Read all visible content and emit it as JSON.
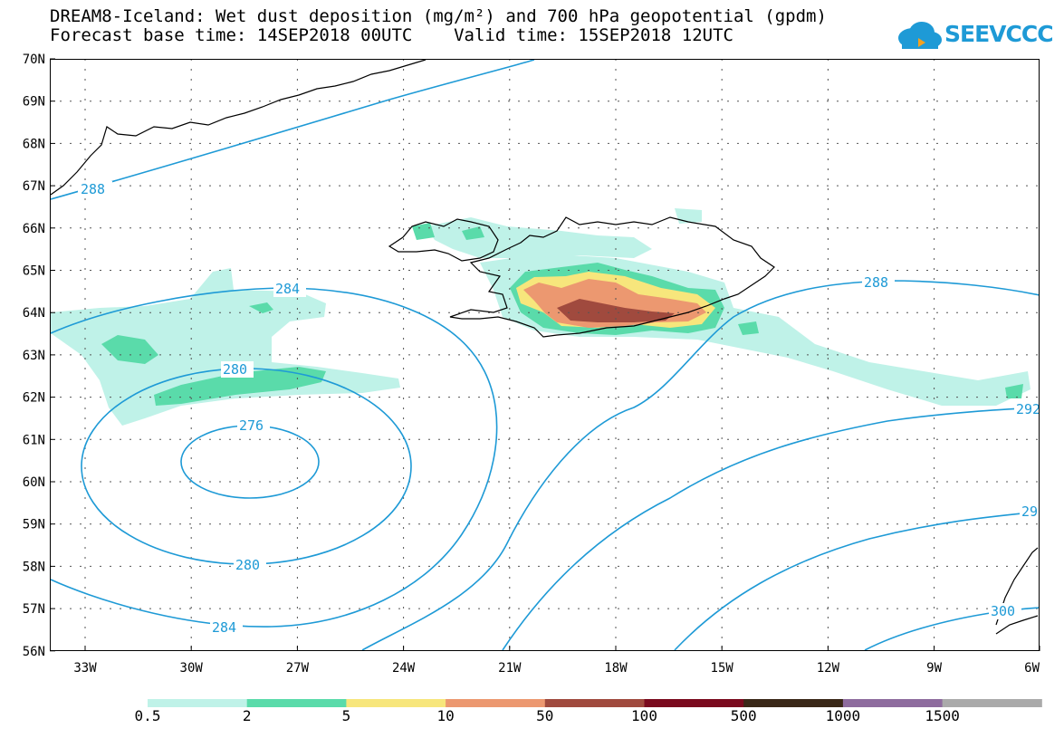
{
  "title": {
    "line1": "DREAM8-Iceland: Wet dust deposition (mg/m²) and 700 hPa geopotential (gpdm)",
    "line2": "Forecast base time: 14SEP2018 00UTC    Valid time: 15SEP2018 12UTC"
  },
  "logo": {
    "text": "SEEVCCC"
  },
  "map": {
    "lon_labels": [
      "33W",
      "30W",
      "27W",
      "24W",
      "21W",
      "18W",
      "15W",
      "12W",
      "9W",
      "6W"
    ],
    "lat_labels": [
      "70N",
      "69N",
      "68N",
      "67N",
      "66N",
      "65N",
      "64N",
      "63N",
      "62N",
      "61N",
      "60N",
      "59N",
      "58N",
      "57N",
      "56N"
    ],
    "contour_labels": [
      "288",
      "284",
      "280",
      "276",
      "280",
      "284",
      "288",
      "292",
      "29",
      "300"
    ]
  },
  "legend": {
    "labels": [
      "0.5",
      "2",
      "5",
      "10",
      "50",
      "100",
      "500",
      "1000",
      "1500"
    ],
    "colors": [
      "#bff2e8",
      "#5adbaa",
      "#f7e67c",
      "#ec9870",
      "#a04a3e",
      "#7a0a1e",
      "#3a2818",
      "#8e6c9e",
      "#aaaaaa"
    ]
  }
}
